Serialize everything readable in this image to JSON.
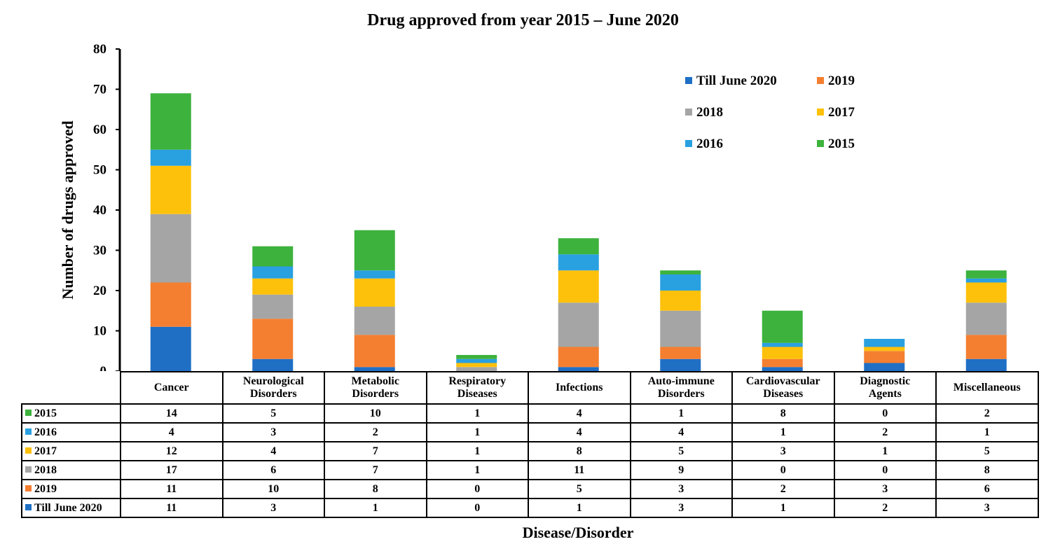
{
  "chart_data": {
    "type": "bar",
    "stacked": true,
    "title": "Drug approved from year 2015 – June 2020",
    "xlabel": "Disease/Disorder",
    "ylabel": "Number of drugs approved",
    "ylim": [
      0,
      80
    ],
    "yticks": [
      0,
      10,
      20,
      30,
      40,
      50,
      60,
      70,
      80
    ],
    "grid": false,
    "legend_position": "top-right",
    "categories": [
      "Cancer",
      "Neurological Disorders",
      "Metabolic Disorders",
      "Respiratory Diseases",
      "Infections",
      "Auto-immune Disorders",
      "Cardiovascular Diseases",
      "Diagnostic Agents",
      "Miscellaneous"
    ],
    "category_lines": [
      [
        "Cancer"
      ],
      [
        "Neurological",
        "Disorders"
      ],
      [
        "Metabolic",
        "Disorders"
      ],
      [
        "Respiratory",
        "Diseases"
      ],
      [
        "Infections"
      ],
      [
        "Auto-immune",
        "Disorders"
      ],
      [
        "Cardiovascular",
        "Diseases"
      ],
      [
        "Diagnostic",
        "Agents"
      ],
      [
        "Miscellaneous"
      ]
    ],
    "series": [
      {
        "name": "Till June 2020",
        "color": "#1f6fc5",
        "values": [
          11,
          3,
          1,
          0,
          1,
          3,
          1,
          2,
          3
        ]
      },
      {
        "name": "2019",
        "color": "#f47f30",
        "values": [
          11,
          10,
          8,
          0,
          5,
          3,
          2,
          3,
          6
        ]
      },
      {
        "name": "2018",
        "color": "#a5a5a5",
        "values": [
          17,
          6,
          7,
          1,
          11,
          9,
          0,
          0,
          8
        ]
      },
      {
        "name": "2017",
        "color": "#fec10b",
        "values": [
          12,
          4,
          7,
          1,
          8,
          5,
          3,
          1,
          5
        ]
      },
      {
        "name": "2016",
        "color": "#29a0e0",
        "values": [
          4,
          3,
          2,
          1,
          4,
          4,
          1,
          2,
          1
        ]
      },
      {
        "name": "2015",
        "color": "#3db23d",
        "values": [
          14,
          5,
          10,
          1,
          4,
          1,
          8,
          0,
          2
        ]
      }
    ],
    "legend_order": [
      "Till June 2020",
      "2019",
      "2018",
      "2017",
      "2016",
      "2015"
    ],
    "table_row_order": [
      "2015",
      "2016",
      "2017",
      "2018",
      "2019",
      "Till June 2020"
    ]
  }
}
